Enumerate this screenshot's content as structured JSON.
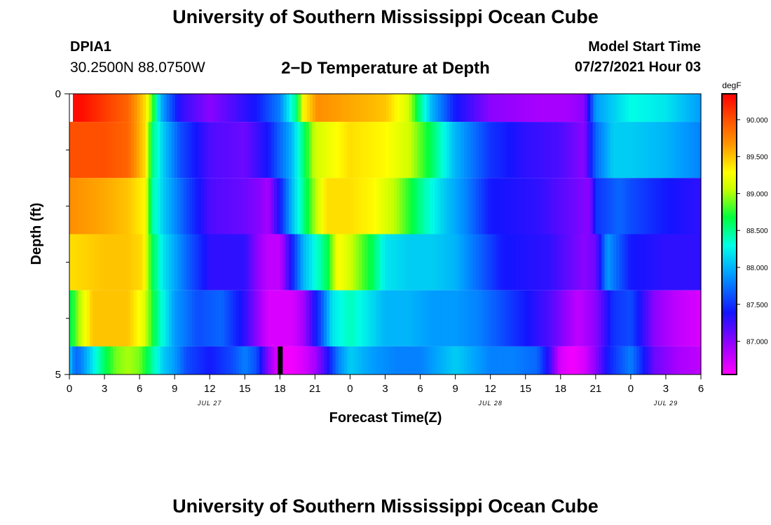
{
  "page": {
    "title_top": "University of Southern Mississippi Ocean Cube",
    "title_bottom": "University of Southern Mississippi Ocean Cube"
  },
  "header": {
    "station_id": "DPIA1",
    "coords": "30.2500N  88.0750W",
    "plot_title": "2−D Temperature at Depth",
    "model_start_label": "Model Start Time",
    "model_start_value": "07/27/2021 Hour 03"
  },
  "chart_data": {
    "type": "heatmap",
    "title": "2−D Temperature at Depth",
    "xlabel": "Forecast Time(Z)",
    "ylabel": "Depth (ft)",
    "x_range": [
      0,
      54
    ],
    "y_range": [
      0,
      5
    ],
    "x_ticks": [
      {
        "t": 0,
        "label": "0"
      },
      {
        "t": 3,
        "label": "3"
      },
      {
        "t": 6,
        "label": "6"
      },
      {
        "t": 9,
        "label": "9"
      },
      {
        "t": 12,
        "label": "12"
      },
      {
        "t": 15,
        "label": "15"
      },
      {
        "t": 18,
        "label": "18"
      },
      {
        "t": 21,
        "label": "21"
      },
      {
        "t": 24,
        "label": "0"
      },
      {
        "t": 27,
        "label": "3"
      },
      {
        "t": 30,
        "label": "6"
      },
      {
        "t": 33,
        "label": "9"
      },
      {
        "t": 36,
        "label": "12"
      },
      {
        "t": 39,
        "label": "15"
      },
      {
        "t": 42,
        "label": "18"
      },
      {
        "t": 45,
        "label": "21"
      },
      {
        "t": 48,
        "label": "0"
      },
      {
        "t": 51,
        "label": "3"
      },
      {
        "t": 54,
        "label": "6"
      }
    ],
    "date_labels": [
      {
        "t": 12,
        "label": "JUL 27"
      },
      {
        "t": 36,
        "label": "JUL 28"
      },
      {
        "t": 51,
        "label": "JUL 29"
      }
    ],
    "y_ticks": [
      {
        "v": 0,
        "label": "0"
      },
      {
        "v": 5,
        "label": "5"
      }
    ],
    "y_minor_ticks": [
      1,
      2,
      3,
      4
    ],
    "colorbar": {
      "unit": "degF",
      "min": 86.55,
      "max": 90.35,
      "ticks": [
        {
          "v": 90.0,
          "label": "90.000"
        },
        {
          "v": 89.5,
          "label": "89.500"
        },
        {
          "v": 89.0,
          "label": "89.000"
        },
        {
          "v": 88.5,
          "label": "88.500"
        },
        {
          "v": 88.0,
          "label": "88.000"
        },
        {
          "v": 87.5,
          "label": "87.500"
        },
        {
          "v": 87.0,
          "label": "87.000"
        }
      ]
    },
    "depth_layers": [
      {
        "top": 0,
        "bottom": 0.5,
        "times": [
          0.3,
          1,
          3,
          5,
          6.5,
          7.3,
          7.8,
          8.5,
          9.5,
          12,
          16,
          18,
          19.5,
          20,
          21.2,
          24,
          27,
          29,
          30,
          31,
          33,
          36,
          40,
          42.5,
          44,
          45,
          46.5,
          48,
          51,
          54
        ],
        "temps": [
          90.3,
          90.3,
          90.1,
          89.9,
          89.4,
          88.6,
          88.0,
          87.7,
          87.3,
          87.0,
          87.4,
          87.8,
          88.6,
          89.3,
          89.7,
          89.6,
          89.5,
          89.1,
          88.5,
          88.0,
          87.4,
          87.0,
          86.9,
          86.9,
          87.0,
          87.9,
          88.1,
          88.3,
          88.2,
          87.9
        ]
      },
      {
        "top": 0.5,
        "bottom": 1.5,
        "times": [
          0,
          3,
          5,
          6.5,
          7,
          8,
          9.5,
          12,
          15,
          17,
          19,
          21,
          24,
          27,
          29,
          31,
          33,
          36,
          39,
          42,
          44,
          45,
          46.5,
          48,
          51,
          54
        ],
        "temps": [
          90.0,
          90.0,
          89.9,
          89.4,
          88.6,
          88.1,
          87.6,
          87.2,
          87.1,
          87.4,
          88.0,
          89.1,
          89.4,
          89.3,
          89.1,
          88.6,
          88.0,
          87.5,
          87.3,
          87.2,
          87.0,
          87.7,
          88.1,
          88.1,
          88.0,
          87.8
        ]
      },
      {
        "top": 1.5,
        "bottom": 2.5,
        "times": [
          0,
          3,
          5,
          6.5,
          7,
          8,
          10,
          12,
          15,
          16.3,
          17,
          18,
          19,
          20,
          21,
          22,
          24,
          26,
          28,
          30,
          32,
          34,
          36,
          40,
          43,
          44.5,
          45,
          47,
          48,
          51,
          54
        ],
        "temps": [
          89.7,
          89.6,
          89.5,
          89.3,
          88.5,
          88.1,
          87.6,
          87.2,
          87.1,
          87.0,
          86.9,
          87.4,
          88.0,
          88.5,
          89.0,
          89.4,
          89.4,
          89.3,
          89.0,
          88.5,
          88.1,
          87.8,
          87.4,
          87.3,
          87.1,
          87.0,
          87.5,
          87.7,
          87.6,
          87.4,
          87.3
        ]
      },
      {
        "top": 2.5,
        "bottom": 3.5,
        "times": [
          0,
          3,
          5,
          6.3,
          7,
          8,
          10,
          12,
          15,
          16,
          17,
          18,
          19,
          20,
          22,
          23,
          24,
          26,
          27,
          29,
          31,
          33,
          35,
          37,
          41,
          44,
          45,
          46,
          48,
          51,
          54
        ],
        "temps": [
          89.4,
          89.5,
          89.5,
          89.4,
          88.7,
          88.2,
          87.7,
          87.3,
          87.3,
          87.0,
          86.8,
          86.8,
          87.4,
          88.0,
          88.6,
          89.3,
          89.1,
          88.6,
          88.2,
          88.1,
          88.1,
          88.0,
          87.7,
          87.4,
          87.3,
          87.0,
          87.1,
          87.9,
          87.4,
          87.3,
          87.3
        ]
      },
      {
        "top": 3.5,
        "bottom": 4.5,
        "times": [
          0,
          0.5,
          1,
          2,
          5,
          6.3,
          7.5,
          9,
          11,
          13,
          15,
          16,
          17,
          19,
          20,
          21.5,
          22.5,
          24,
          27,
          29,
          31,
          33,
          35,
          37,
          41,
          43.5,
          45,
          46.5,
          48,
          50,
          52,
          54
        ],
        "temps": [
          88.6,
          88.8,
          89.1,
          89.5,
          89.5,
          89.2,
          88.5,
          87.9,
          87.6,
          87.7,
          87.3,
          87.0,
          86.7,
          86.7,
          86.9,
          87.6,
          88.2,
          88.4,
          88.0,
          88.0,
          87.9,
          87.9,
          87.8,
          87.6,
          87.2,
          86.8,
          87.0,
          87.5,
          87.6,
          87.0,
          86.8,
          86.7
        ]
      },
      {
        "top": 4.5,
        "bottom": 5.0,
        "times": [
          0,
          0.5,
          1,
          2,
          3,
          4,
          5,
          6,
          7,
          8,
          9,
          10,
          12,
          14,
          15,
          16,
          17,
          18,
          19,
          20,
          21,
          22,
          23,
          24,
          26,
          28,
          30,
          32,
          33,
          34,
          36,
          38,
          40,
          41,
          42,
          43,
          44,
          45,
          46,
          47,
          48,
          50,
          52,
          54
        ],
        "temps": [
          88.1,
          87.7,
          87.8,
          88.2,
          88.6,
          88.9,
          89.0,
          88.9,
          88.5,
          88.1,
          87.9,
          87.6,
          87.4,
          87.6,
          87.8,
          87.6,
          87.0,
          86.6,
          86.6,
          86.7,
          86.9,
          87.3,
          87.8,
          88.1,
          87.9,
          87.8,
          87.8,
          88.0,
          88.1,
          88.0,
          87.8,
          87.8,
          87.7,
          87.3,
          86.7,
          86.6,
          86.7,
          87.0,
          87.4,
          87.6,
          87.8,
          87.1,
          86.9,
          86.8
        ]
      }
    ],
    "marker": {
      "t": 18,
      "depth_from": 4.5,
      "depth_to": 5.0
    }
  }
}
